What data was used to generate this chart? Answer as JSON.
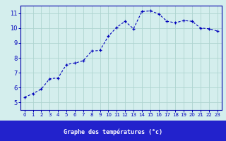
{
  "x": [
    0,
    1,
    2,
    3,
    4,
    5,
    6,
    7,
    8,
    9,
    10,
    11,
    12,
    13,
    14,
    15,
    16,
    17,
    18,
    19,
    20,
    21,
    22,
    23
  ],
  "y": [
    5.35,
    5.6,
    5.9,
    6.6,
    6.65,
    7.55,
    7.65,
    7.8,
    8.45,
    8.5,
    9.45,
    10.05,
    10.45,
    9.95,
    11.1,
    11.15,
    10.95,
    10.45,
    10.35,
    10.5,
    10.45,
    10.0,
    9.95,
    9.8
  ],
  "xlabel": "Graphe des températures (°c)",
  "ylim": [
    4.5,
    11.5
  ],
  "xlim": [
    -0.5,
    23.5
  ],
  "yticks": [
    5,
    6,
    7,
    8,
    9,
    10,
    11
  ],
  "xticks": [
    0,
    1,
    2,
    3,
    4,
    5,
    6,
    7,
    8,
    9,
    10,
    11,
    12,
    13,
    14,
    15,
    16,
    17,
    18,
    19,
    20,
    21,
    22,
    23
  ],
  "line_color": "#0000bb",
  "marker": "+",
  "bg_color": "#d4eeed",
  "grid_color": "#aed4d0",
  "axis_color": "#0000aa",
  "label_color": "#0000bb",
  "xbar_color": "#2222cc",
  "tick_label_fontsize": 5.0,
  "ylabel_fontsize": 6.0,
  "ytick_label_fontsize": 6.0
}
